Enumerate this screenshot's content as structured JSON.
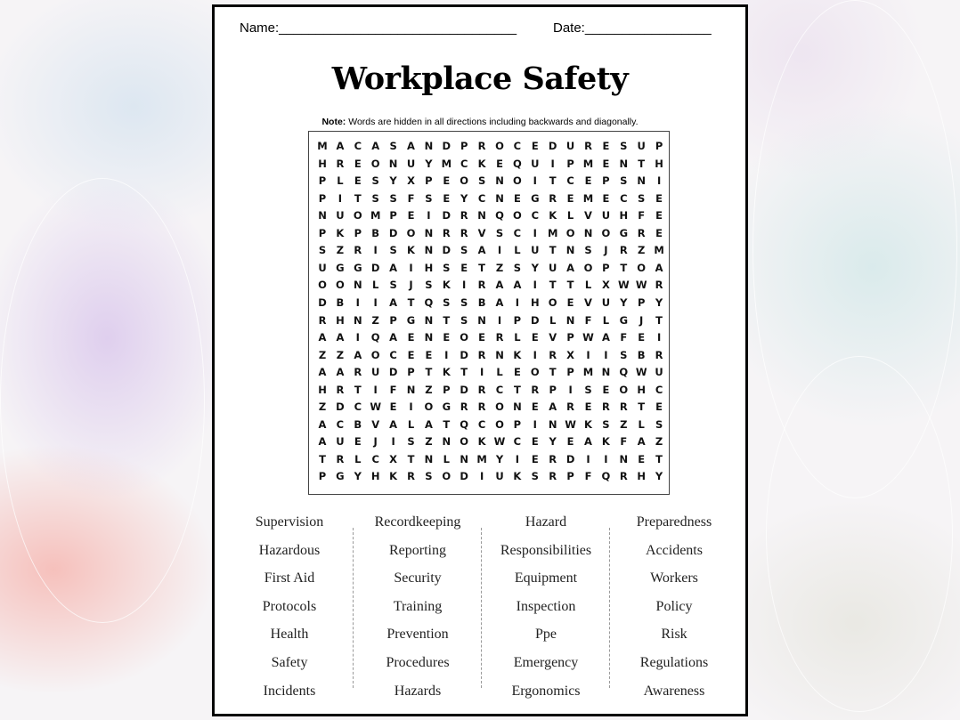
{
  "header": {
    "name_label": "Name:________________________________",
    "date_label": "Date:_________________"
  },
  "title": "Workplace Safety",
  "note": {
    "bold": "Note:",
    "text": " Words are hidden in all directions including backwards and diagonally."
  },
  "grid": [
    "MACASANDPROCEDURESUP",
    "HREONUYMCKEQUIPMENTH",
    "PLESYXPEOSNOITCEPSNI",
    "PITSSFSEYCNEGREMECSE",
    "NUOMPEIDRNQOCKLVUHFE",
    "PKPBDONRRVSCIMONOGRE",
    "SZRISKNDSAILUTNSJRZM",
    "UGGDAIHSETZSYUAOPTOA",
    "OONLSJSKIRAAITTLXWWR",
    "DBIIATQSSBAIHOEVUYPY",
    "RHNZPGNTSNIPDLNFLGJT",
    "AAIQAENEOERLEVPWAFEI",
    "ZZAOCEEIDRNKIRXIISBR",
    "AARUDPTKTILEOTPMNQWU",
    "HRTIFNZPDRCTRPISEOHC",
    "ZDCWEIOGRRONEARERRTE",
    "ACBVALATQCOPINWKSZLS",
    "AUEJISZNOKWCEYEAKFAZ",
    "TRLCXTNLNMYIERDIINET",
    "PGYHKRSODIUKSRPFQRHY"
  ],
  "word_columns": [
    [
      "Supervision",
      "Hazardous",
      "First Aid",
      "Protocols",
      "Health",
      "Safety",
      "Incidents"
    ],
    [
      "Recordkeeping",
      "Reporting",
      "Security",
      "Training",
      "Prevention",
      "Procedures",
      "Hazards"
    ],
    [
      "Hazard",
      "Responsibilities",
      "Equipment",
      "Inspection",
      "Ppe",
      "Emergency",
      "Ergonomics"
    ],
    [
      "Preparedness",
      "Accidents",
      "Workers",
      "Policy",
      "Risk",
      "Regulations",
      "Awareness"
    ]
  ]
}
